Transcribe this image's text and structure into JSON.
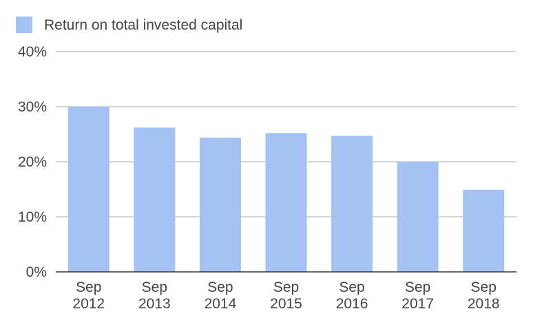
{
  "chart_data": {
    "type": "bar",
    "categories": [
      "Sep 2012",
      "Sep 2013",
      "Sep 2014",
      "Sep 2015",
      "Sep 2016",
      "Sep 2017",
      "Sep 2018"
    ],
    "category_lines": [
      [
        "Sep",
        "2012"
      ],
      [
        "Sep",
        "2013"
      ],
      [
        "Sep",
        "2014"
      ],
      [
        "Sep",
        "2015"
      ],
      [
        "Sep",
        "2016"
      ],
      [
        "Sep",
        "2017"
      ],
      [
        "Sep",
        "2018"
      ]
    ],
    "series": [
      {
        "name": "Return on total invested capital",
        "values": [
          30,
          26.2,
          24.4,
          25.2,
          24.7,
          20,
          14.9
        ],
        "color": "#a4c2f4"
      }
    ],
    "ylim": [
      0,
      40
    ],
    "yticks": [
      0,
      10,
      20,
      30,
      40
    ],
    "ytick_labels": [
      "0%",
      "10%",
      "20%",
      "30%",
      "40%"
    ],
    "grid": true,
    "legend_position": "top-left"
  }
}
